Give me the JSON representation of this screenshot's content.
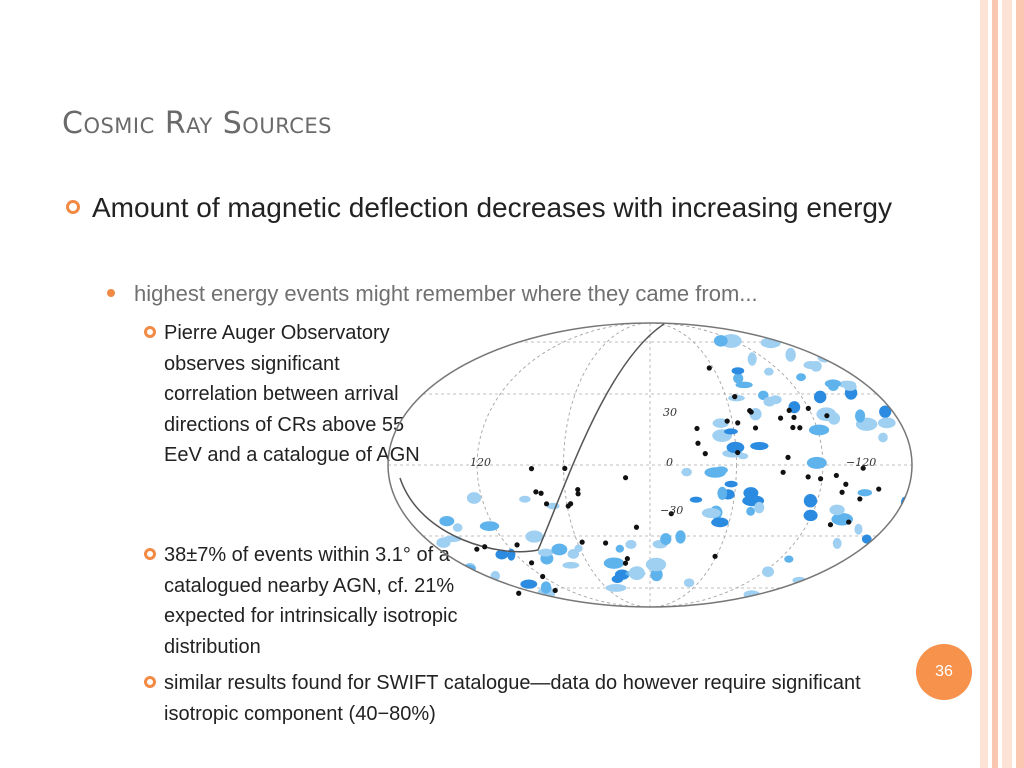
{
  "slide": {
    "title": "Cosmic Ray Sources",
    "page_number": "36",
    "accent_color": "#f08a45"
  },
  "bullets": {
    "main": "Amount of magnetic deflection decreases with increasing energy",
    "sub": "highest energy events might remember where they came from...",
    "points": [
      "Pierre Auger Observatory observes significant correlation between arrival directions of CRs above 55 EeV and a catalogue of AGN",
      "38±7% of events within 3.1° of a catalogued nearby AGN, cf. 21% expected for intrinsically isotropic distribution",
      "similar results found for SWIFT catalogue—data do however require significant isotropic component (40−80%)"
    ]
  },
  "skymap": {
    "lon_labels": [
      "120",
      "0",
      "−120"
    ],
    "lat_labels": [
      "30",
      "−30"
    ],
    "colors": {
      "light": "#9fd0f2",
      "mid": "#5fb3ec",
      "dark": "#2a8be0",
      "event": "#111111"
    }
  }
}
